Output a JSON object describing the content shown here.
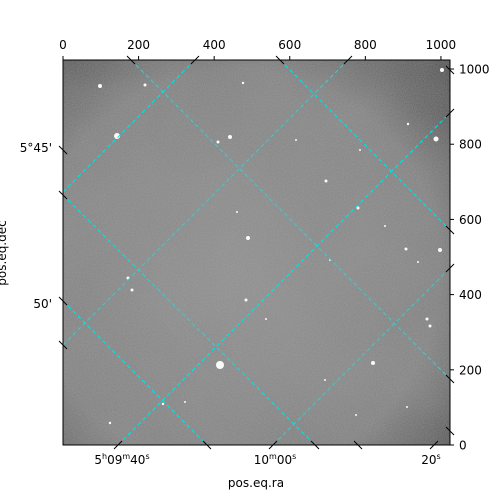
{
  "chart_data": {
    "type": "image",
    "colormap": "gray",
    "grid": true,
    "grid_color": "#00e5e5",
    "grid_style": "dashed",
    "pixel_axes": {
      "x_range": [
        0,
        1024
      ],
      "y_range": [
        0,
        1024
      ],
      "x_ticks": [
        0,
        200,
        400,
        600,
        800,
        1000
      ],
      "y_ticks": [
        0,
        200,
        400,
        600,
        800,
        1000
      ]
    },
    "world_axes": {
      "xlabel": "pos.eq.ra",
      "ylabel": "pos.eq.dec",
      "ra_ticks": [
        {
          "h": "5",
          "m": "09",
          "s": "40"
        },
        {
          "h": "",
          "m": "10",
          "s": "00"
        },
        {
          "h": "",
          "m": "",
          "s": "20"
        }
      ],
      "dec_ticks": [
        "5°45'",
        "50'"
      ]
    }
  }
}
